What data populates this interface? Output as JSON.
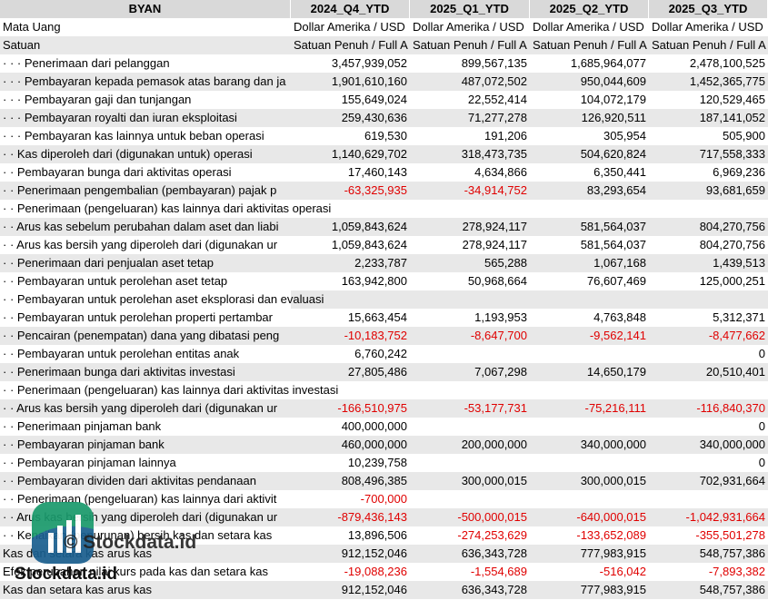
{
  "header": [
    "BYAN",
    "2024_Q4_YTD",
    "2025_Q1_YTD",
    "2025_Q2_YTD",
    "2025_Q3_YTD"
  ],
  "meta_rows": [
    [
      "Mata Uang",
      "Dollar Amerika / USD",
      "Dollar Amerika / USD",
      "Dollar Amerika / USD",
      "Dollar Amerika / USD"
    ],
    [
      "Satuan",
      "Satuan Penuh / Full A",
      "Satuan Penuh / Full A",
      "Satuan Penuh / Full A",
      "Satuan Penuh / Full A"
    ]
  ],
  "rows": [
    [
      "· · · Penerimaan dari pelanggan",
      "3,457,939,052",
      "899,567,135",
      "1,685,964,077",
      "2,478,100,525"
    ],
    [
      "· · · Pembayaran kepada pemasok atas barang dan ja",
      "1,901,610,160",
      "487,072,502",
      "950,044,609",
      "1,452,365,775"
    ],
    [
      "· · · Pembayaran gaji dan tunjangan",
      "155,649,024",
      "22,552,414",
      "104,072,179",
      "120,529,465"
    ],
    [
      "· · · Pembayaran royalti dan iuran eksploitasi",
      "259,430,636",
      "71,277,278",
      "126,920,511",
      "187,141,052"
    ],
    [
      "· · · Pembayaran kas lainnya untuk beban operasi",
      "619,530",
      "191,206",
      "305,954",
      "505,900"
    ],
    [
      "· · Kas diperoleh dari (digunakan untuk) operasi",
      "1,140,629,702",
      "318,473,735",
      "504,620,824",
      "717,558,333"
    ],
    [
      "· · Pembayaran bunga dari aktivitas operasi",
      "17,460,143",
      "4,634,866",
      "6,350,441",
      "6,969,236"
    ],
    [
      "· · Penerimaan pengembalian (pembayaran) pajak p",
      "-63,325,935",
      "-34,914,752",
      "83,293,654",
      "93,681,659"
    ],
    [
      "· · Penerimaan (pengeluaran) kas lainnya dari aktivitas operasi"
    ],
    [
      "· · Arus kas sebelum perubahan dalam aset dan liabi",
      "1,059,843,624",
      "278,924,117",
      "581,564,037",
      "804,270,756"
    ],
    [
      "· · Arus kas bersih yang diperoleh dari (digunakan ur",
      "1,059,843,624",
      "278,924,117",
      "581,564,037",
      "804,270,756"
    ],
    [
      "· · Penerimaan dari penjualan aset tetap",
      "2,233,787",
      "565,288",
      "1,067,168",
      "1,439,513"
    ],
    [
      "· · Pembayaran untuk perolehan aset tetap",
      "163,942,800",
      "50,968,664",
      "76,607,469",
      "125,000,251"
    ],
    [
      "· · Pembayaran untuk perolehan aset eksplorasi dan evaluasi"
    ],
    [
      "· · Pembayaran untuk perolehan properti pertambar",
      "15,663,454",
      "1,193,953",
      "4,763,848",
      "5,312,371"
    ],
    [
      "· · Pencairan (penempatan) dana yang dibatasi peng",
      "-10,183,752",
      "-8,647,700",
      "-9,562,141",
      "-8,477,662"
    ],
    [
      "· · Pembayaran untuk perolehan entitas anak",
      "6,760,242",
      null,
      null,
      "0"
    ],
    [
      "· · Penerimaan bunga dari aktivitas investasi",
      "27,805,486",
      "7,067,298",
      "14,650,179",
      "20,510,401"
    ],
    [
      "· · Penerimaan (pengeluaran) kas lainnya dari aktivitas investasi"
    ],
    [
      "· · Arus kas bersih yang diperoleh dari (digunakan ur",
      "-166,510,975",
      "-53,177,731",
      "-75,216,111",
      "-116,840,370"
    ],
    [
      "· · Penerimaan pinjaman bank",
      "400,000,000",
      null,
      null,
      "0"
    ],
    [
      "· · Pembayaran pinjaman bank",
      "460,000,000",
      "200,000,000",
      "340,000,000",
      "340,000,000"
    ],
    [
      "· · Pembayaran pinjaman lainnya",
      "10,239,758",
      null,
      null,
      "0"
    ],
    [
      "· · Pembayaran dividen dari aktivitas pendanaan",
      "808,496,385",
      "300,000,015",
      "300,000,015",
      "702,931,664"
    ],
    [
      "· · Penerimaan (pengeluaran) kas lainnya dari aktivit",
      "-700,000"
    ],
    [
      "· · Arus kas bersih yang diperoleh dari (digunakan ur",
      "-879,436,143",
      "-500,000,015",
      "-640,000,015",
      "-1,042,931,664"
    ],
    [
      "· · Kenaikan (penurunan) bersih kas dan setara kas",
      "13,896,506",
      "-274,253,629",
      "-133,652,089",
      "-355,501,278"
    ],
    [
      "Kas dan setara kas arus kas",
      "912,152,046",
      "636,343,728",
      "777,983,915",
      "548,757,386"
    ],
    [
      "Efek perubahan nilai kurs pada kas dan setara kas",
      "-19,088,236",
      "-1,554,689",
      "-516,042",
      "-7,893,382"
    ],
    [
      "Kas dan setara kas arus kas",
      "912,152,046",
      "636,343,728",
      "777,983,915",
      "548,757,386"
    ]
  ],
  "watermark": {
    "center": "© Stockdata.id",
    "corner": "Stockdata.id"
  }
}
